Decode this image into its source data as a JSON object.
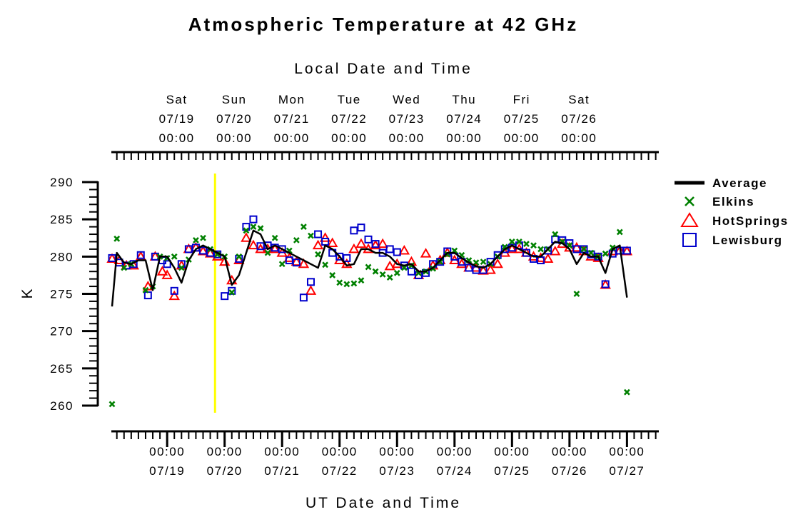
{
  "chart_data": {
    "type": "scatter",
    "title": "Atmospheric Temperature at 42 GHz",
    "top_axis_label": "Local Date and Time",
    "xlabel": "UT Date and Time",
    "ylabel": "K",
    "ylim": [
      259,
      291
    ],
    "xlim_hours": [
      -23,
      205
    ],
    "yticks": [
      260,
      265,
      270,
      275,
      280,
      285,
      290
    ],
    "bottom_ticks": [
      {
        "h": 0,
        "time": "00:00",
        "date": "07/19"
      },
      {
        "h": 24,
        "time": "00:00",
        "date": "07/20"
      },
      {
        "h": 48,
        "time": "00:00",
        "date": "07/21"
      },
      {
        "h": 72,
        "time": "00:00",
        "date": "07/22"
      },
      {
        "h": 96,
        "time": "00:00",
        "date": "07/23"
      },
      {
        "h": 120,
        "time": "00:00",
        "date": "07/24"
      },
      {
        "h": 144,
        "time": "00:00",
        "date": "07/25"
      },
      {
        "h": 168,
        "time": "00:00",
        "date": "07/26"
      },
      {
        "h": 192,
        "time": "00:00",
        "date": "07/27"
      }
    ],
    "top_ticks": [
      {
        "h": 4,
        "day": "Sat",
        "date": "07/19",
        "time": "00:00"
      },
      {
        "h": 28,
        "day": "Sun",
        "date": "07/20",
        "time": "00:00"
      },
      {
        "h": 52,
        "day": "Mon",
        "date": "07/21",
        "time": "00:00"
      },
      {
        "h": 76,
        "day": "Tue",
        "date": "07/22",
        "time": "00:00"
      },
      {
        "h": 100,
        "day": "Wed",
        "date": "07/23",
        "time": "00:00"
      },
      {
        "h": 124,
        "day": "Thu",
        "date": "07/24",
        "time": "00:00"
      },
      {
        "h": 148,
        "day": "Fri",
        "date": "07/25",
        "time": "00:00"
      },
      {
        "h": 172,
        "day": "Sat",
        "date": "07/26",
        "time": "00:00"
      }
    ],
    "marker_line_h": 20,
    "legend_position": "right",
    "series": [
      {
        "name": "Average",
        "marker": "line",
        "color": "#000000",
        "points": [
          [
            -23,
            273.3
          ],
          [
            -21,
            280.5
          ],
          [
            -18,
            279.2
          ],
          [
            -15,
            279
          ],
          [
            -12,
            279.5
          ],
          [
            -9,
            279.5
          ],
          [
            -6,
            275.5
          ],
          [
            -3,
            280
          ],
          [
            0,
            280
          ],
          [
            3,
            278.5
          ],
          [
            6,
            276.5
          ],
          [
            9,
            279.5
          ],
          [
            12,
            281
          ],
          [
            15,
            281.5
          ],
          [
            18,
            281
          ],
          [
            21,
            280.5
          ],
          [
            24,
            280
          ],
          [
            27,
            276.2
          ],
          [
            30,
            277.5
          ],
          [
            33,
            280.5
          ],
          [
            36,
            283.5
          ],
          [
            39,
            283
          ],
          [
            42,
            281
          ],
          [
            45,
            281.5
          ],
          [
            48,
            281
          ],
          [
            51,
            280.5
          ],
          [
            54,
            280
          ],
          [
            57,
            279.5
          ],
          [
            60,
            279
          ],
          [
            63,
            278.5
          ],
          [
            66,
            281.5
          ],
          [
            69,
            281
          ],
          [
            72,
            280
          ],
          [
            75,
            278.8
          ],
          [
            78,
            279
          ],
          [
            81,
            281
          ],
          [
            84,
            281
          ],
          [
            87,
            280.5
          ],
          [
            90,
            280.5
          ],
          [
            93,
            280
          ],
          [
            96,
            279
          ],
          [
            99,
            278.8
          ],
          [
            102,
            279
          ],
          [
            105,
            278
          ],
          [
            108,
            278
          ],
          [
            111,
            278.5
          ],
          [
            114,
            279.5
          ],
          [
            117,
            280.5
          ],
          [
            120,
            280.5
          ],
          [
            123,
            279.8
          ],
          [
            126,
            279.2
          ],
          [
            129,
            278.7
          ],
          [
            132,
            278.5
          ],
          [
            135,
            279
          ],
          [
            138,
            280
          ],
          [
            141,
            281
          ],
          [
            144,
            281.5
          ],
          [
            147,
            281
          ],
          [
            150,
            280.5
          ],
          [
            153,
            280
          ],
          [
            156,
            280
          ],
          [
            159,
            281
          ],
          [
            162,
            282
          ],
          [
            165,
            281.8
          ],
          [
            168,
            281
          ],
          [
            171,
            279
          ],
          [
            174,
            280.5
          ],
          [
            177,
            280
          ],
          [
            180,
            280
          ],
          [
            183,
            277.8
          ],
          [
            186,
            281
          ],
          [
            189,
            281.5
          ],
          [
            192,
            274.5
          ]
        ]
      },
      {
        "name": "Elkins",
        "marker": "x",
        "color": "#008000",
        "points": [
          [
            -23,
            260.2
          ],
          [
            -21,
            282.4
          ],
          [
            -18,
            278.5
          ],
          [
            -15,
            279
          ],
          [
            -9,
            275.5
          ],
          [
            -6,
            276
          ],
          [
            -3,
            280
          ],
          [
            0,
            279.8
          ],
          [
            3,
            280
          ],
          [
            6,
            278.5
          ],
          [
            9,
            279.6
          ],
          [
            12,
            282.2
          ],
          [
            15,
            282.5
          ],
          [
            18,
            281
          ],
          [
            21,
            280.3
          ],
          [
            24,
            280
          ],
          [
            27,
            275.2
          ],
          [
            30,
            280
          ],
          [
            33,
            283.5
          ],
          [
            36,
            284
          ],
          [
            39,
            283.8
          ],
          [
            42,
            280.5
          ],
          [
            45,
            282.5
          ],
          [
            48,
            279
          ],
          [
            51,
            280.8
          ],
          [
            54,
            282.2
          ],
          [
            57,
            284
          ],
          [
            60,
            282.8
          ],
          [
            63,
            280.3
          ],
          [
            66,
            278.9
          ],
          [
            69,
            277.5
          ],
          [
            72,
            276.5
          ],
          [
            75,
            276.3
          ],
          [
            78,
            276.4
          ],
          [
            81,
            276.8
          ],
          [
            84,
            278.6
          ],
          [
            87,
            278
          ],
          [
            90,
            277.6
          ],
          [
            93,
            277.2
          ],
          [
            96,
            277.8
          ],
          [
            99,
            278.5
          ],
          [
            102,
            278.8
          ],
          [
            105,
            277.8
          ],
          [
            108,
            278
          ],
          [
            111,
            278.4
          ],
          [
            114,
            279.3
          ],
          [
            117,
            280.3
          ],
          [
            120,
            280.8
          ],
          [
            123,
            280.2
          ],
          [
            126,
            279.5
          ],
          [
            129,
            279.2
          ],
          [
            132,
            279.3
          ],
          [
            135,
            279
          ],
          [
            138,
            280
          ],
          [
            141,
            281.3
          ],
          [
            144,
            282
          ],
          [
            147,
            282
          ],
          [
            150,
            281.7
          ],
          [
            153,
            281.5
          ],
          [
            156,
            281
          ],
          [
            159,
            281
          ],
          [
            162,
            283
          ],
          [
            165,
            282
          ],
          [
            168,
            281.5
          ],
          [
            171,
            275
          ],
          [
            174,
            281
          ],
          [
            177,
            280.5
          ],
          [
            180,
            280
          ],
          [
            183,
            280.4
          ],
          [
            186,
            281.2
          ],
          [
            189,
            283.3
          ],
          [
            192,
            261.8
          ]
        ]
      },
      {
        "name": "HotSprings",
        "marker": "triangle",
        "color": "#ff0000",
        "points": [
          [
            -23,
            279.7
          ],
          [
            -20,
            279.5
          ],
          [
            -17,
            278.8
          ],
          [
            -14,
            278.8
          ],
          [
            -11,
            280
          ],
          [
            -8,
            276
          ],
          [
            -5,
            280
          ],
          [
            -2,
            278
          ],
          [
            0,
            277.5
          ],
          [
            3,
            274.7
          ],
          [
            6,
            278.8
          ],
          [
            9,
            281
          ],
          [
            12,
            281.2
          ],
          [
            15,
            280.7
          ],
          [
            18,
            280.4
          ],
          [
            21,
            280
          ],
          [
            24,
            279.3
          ],
          [
            27,
            276.8
          ],
          [
            30,
            279.5
          ],
          [
            33,
            282.5
          ],
          [
            36,
            281.5
          ],
          [
            39,
            281
          ],
          [
            42,
            281
          ],
          [
            45,
            281
          ],
          [
            48,
            280.5
          ],
          [
            51,
            279.8
          ],
          [
            54,
            279.3
          ],
          [
            57,
            279
          ],
          [
            60,
            275.4
          ],
          [
            63,
            281.5
          ],
          [
            66,
            282.5
          ],
          [
            69,
            281.8
          ],
          [
            72,
            279.5
          ],
          [
            75,
            279
          ],
          [
            78,
            281
          ],
          [
            81,
            281.7
          ],
          [
            84,
            281
          ],
          [
            87,
            281.5
          ],
          [
            90,
            281.7
          ],
          [
            93,
            278.7
          ],
          [
            96,
            279
          ],
          [
            99,
            280.8
          ],
          [
            102,
            279.3
          ],
          [
            105,
            277.5
          ],
          [
            108,
            280.4
          ],
          [
            111,
            278.8
          ],
          [
            114,
            279.5
          ],
          [
            117,
            280.5
          ],
          [
            120,
            279.5
          ],
          [
            123,
            279
          ],
          [
            126,
            278.5
          ],
          [
            129,
            278.5
          ],
          [
            132,
            278.1
          ],
          [
            135,
            278.2
          ],
          [
            138,
            279
          ],
          [
            141,
            280.5
          ],
          [
            144,
            281
          ],
          [
            147,
            281
          ],
          [
            150,
            280.5
          ],
          [
            153,
            280
          ],
          [
            156,
            279.8
          ],
          [
            159,
            279.7
          ],
          [
            162,
            280.7
          ],
          [
            165,
            281.7
          ],
          [
            168,
            281.2
          ],
          [
            171,
            281.2
          ],
          [
            174,
            280.7
          ],
          [
            177,
            280
          ],
          [
            180,
            279.8
          ],
          [
            183,
            276.2
          ],
          [
            186,
            280.7
          ],
          [
            189,
            280.8
          ],
          [
            192,
            280.7
          ]
        ]
      },
      {
        "name": "Lewisburg",
        "marker": "square",
        "color": "#0000cc",
        "points": [
          [
            -23,
            279.8
          ],
          [
            -20,
            279.2
          ],
          [
            -17,
            278.8
          ],
          [
            -14,
            279
          ],
          [
            -11,
            280.2
          ],
          [
            -8,
            274.8
          ],
          [
            -5,
            280
          ],
          [
            -2,
            279.5
          ],
          [
            0,
            279
          ],
          [
            3,
            275.4
          ],
          [
            6,
            279
          ],
          [
            9,
            281
          ],
          [
            12,
            281.2
          ],
          [
            15,
            280.8
          ],
          [
            18,
            280.5
          ],
          [
            21,
            280.3
          ],
          [
            24,
            274.7
          ],
          [
            27,
            275.4
          ],
          [
            30,
            279.7
          ],
          [
            33,
            284
          ],
          [
            36,
            285
          ],
          [
            39,
            281.4
          ],
          [
            42,
            281.5
          ],
          [
            45,
            281.2
          ],
          [
            48,
            281
          ],
          [
            51,
            279.5
          ],
          [
            54,
            279.2
          ],
          [
            57,
            274.5
          ],
          [
            60,
            276.6
          ],
          [
            63,
            283
          ],
          [
            66,
            282
          ],
          [
            69,
            280.5
          ],
          [
            72,
            280
          ],
          [
            75,
            279.8
          ],
          [
            78,
            283.5
          ],
          [
            81,
            283.9
          ],
          [
            84,
            282.3
          ],
          [
            87,
            281.7
          ],
          [
            90,
            280.5
          ],
          [
            93,
            281
          ],
          [
            96,
            280.6
          ],
          [
            99,
            278.8
          ],
          [
            102,
            278
          ],
          [
            105,
            277.5
          ],
          [
            108,
            277.8
          ],
          [
            111,
            279
          ],
          [
            114,
            279.3
          ],
          [
            117,
            280.7
          ],
          [
            120,
            280
          ],
          [
            123,
            279.3
          ],
          [
            126,
            278.5
          ],
          [
            129,
            278.2
          ],
          [
            132,
            278.2
          ],
          [
            135,
            279.3
          ],
          [
            138,
            280.2
          ],
          [
            141,
            281
          ],
          [
            144,
            281.2
          ],
          [
            147,
            281.5
          ],
          [
            150,
            280.5
          ],
          [
            153,
            279.7
          ],
          [
            156,
            279.5
          ],
          [
            159,
            280.8
          ],
          [
            162,
            282.3
          ],
          [
            165,
            282.2
          ],
          [
            168,
            281.8
          ],
          [
            171,
            281
          ],
          [
            174,
            281
          ],
          [
            177,
            280.3
          ],
          [
            180,
            280
          ],
          [
            183,
            276.3
          ],
          [
            186,
            280.4
          ],
          [
            189,
            280.8
          ],
          [
            192,
            280.8
          ]
        ]
      }
    ]
  }
}
